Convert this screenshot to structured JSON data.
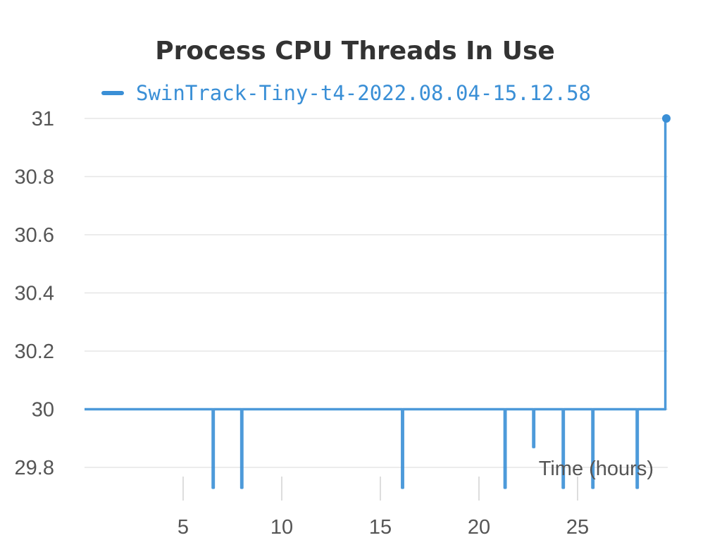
{
  "chart_data": {
    "type": "line",
    "title": "Process CPU Threads In Use",
    "xlabel": "Time (hours)",
    "ylabel": "",
    "xlim": [
      0,
      29.7
    ],
    "ylim": [
      29.8,
      31
    ],
    "x_ticks": [
      "5",
      "10",
      "15",
      "20",
      "25"
    ],
    "y_ticks": [
      "29.8",
      "30",
      "30.2",
      "30.4",
      "30.6",
      "30.8",
      "31"
    ],
    "grid": true,
    "legend_position": "top",
    "series": [
      {
        "name": "SwinTrack-Tiny-t4-2022.08.04-15.12.58",
        "color": "#3a8fd6",
        "x": [
          0,
          6.5,
          6.5,
          6.55,
          6.55,
          7.95,
          7.95,
          8.0,
          8.0,
          16.1,
          16.1,
          16.15,
          16.15,
          21.3,
          21.3,
          21.35,
          21.35,
          22.75,
          22.75,
          22.8,
          22.8,
          24.25,
          24.25,
          24.3,
          24.3,
          25.75,
          25.75,
          25.8,
          25.8,
          28.0,
          28.0,
          28.05,
          28.05,
          29.45,
          29.45,
          29.5
        ],
        "y": [
          30,
          30,
          29.73,
          29.73,
          30,
          30,
          29.73,
          29.73,
          30,
          30,
          29.73,
          29.73,
          30,
          30,
          29.73,
          29.73,
          30,
          30,
          29.87,
          29.87,
          30,
          30,
          29.73,
          29.73,
          30,
          30,
          29.73,
          29.73,
          30,
          30,
          29.73,
          29.73,
          30,
          30,
          31,
          31
        ]
      }
    ]
  }
}
